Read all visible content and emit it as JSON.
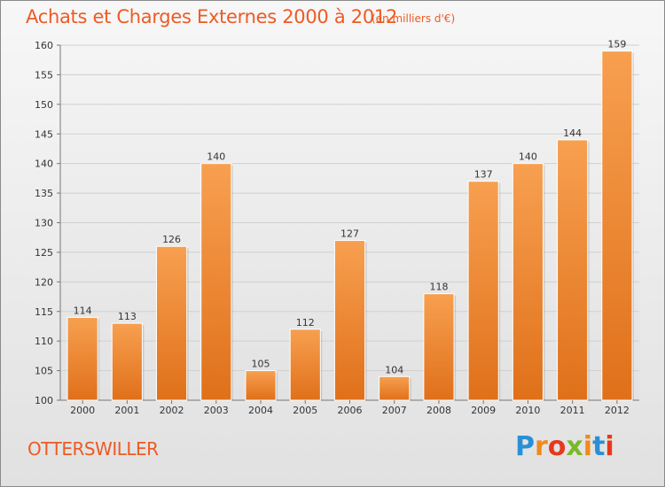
{
  "header": {
    "title": "Achats et Charges Externes 2000 à 2012",
    "subtitle": "(en milliers d'€)"
  },
  "footer": {
    "commune": "OTTERSWILLER",
    "logo": "Proxiti"
  },
  "colors": {
    "title": "#ee5a24",
    "bar_top": "#f7a050",
    "bar_bottom": "#e0701a",
    "grid": "#d0d0d0"
  },
  "chart_data": {
    "type": "bar",
    "categories": [
      "2000",
      "2001",
      "2002",
      "2003",
      "2004",
      "2005",
      "2006",
      "2007",
      "2008",
      "2009",
      "2010",
      "2011",
      "2012"
    ],
    "values": [
      114,
      113,
      126,
      140,
      105,
      112,
      127,
      104,
      118,
      137,
      140,
      144,
      159
    ],
    "ylim": [
      100,
      160
    ],
    "yticks": [
      100,
      105,
      110,
      115,
      120,
      125,
      130,
      135,
      140,
      145,
      150,
      155,
      160
    ],
    "grid": true
  }
}
